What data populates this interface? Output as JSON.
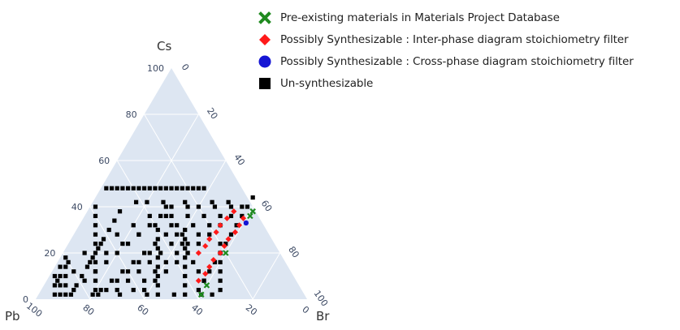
{
  "legend": {
    "items": [
      {
        "label": "Pre-existing materials in Materials Project Database",
        "marker": "x-cross",
        "color": "#1f8a1f"
      },
      {
        "label": "Possibly Synthesizable : Inter-phase diagram stoichiometry filter",
        "marker": "diamond",
        "color": "#ff1a1a"
      },
      {
        "label": "Possibly Synthesizable  : Cross-phase diagram stoichiometry filter",
        "marker": "circle",
        "color": "#1515d4"
      },
      {
        "label": "Un-synthesizable",
        "marker": "square",
        "color": "#000000"
      }
    ]
  },
  "colors": {
    "background": "#dde6f2",
    "grid": "#ffffff",
    "tick_text": "#3d4a64"
  },
  "chart_data": {
    "type": "scatter",
    "subtype": "ternary",
    "vertices": {
      "top": "Cs",
      "left": "Pb",
      "right": "Br"
    },
    "ticks": {
      "Cs": [
        "0",
        "20",
        "40",
        "60",
        "80",
        "100"
      ],
      "Br": [
        "0",
        "20",
        "40",
        "60",
        "80",
        "100"
      ],
      "Pb": [
        "100",
        "80",
        "60",
        "40",
        "20",
        "0"
      ]
    },
    "grid": true,
    "series": [
      {
        "name": "Un-synthesizable",
        "color": "#000000",
        "marker": "square",
        "points": [
          [
            48,
            2,
            50
          ],
          [
            48,
            4,
            48
          ],
          [
            48,
            6,
            46
          ],
          [
            48,
            8,
            44
          ],
          [
            48,
            10,
            42
          ],
          [
            48,
            12,
            40
          ],
          [
            48,
            14,
            38
          ],
          [
            48,
            16,
            36
          ],
          [
            48,
            18,
            34
          ],
          [
            48,
            20,
            32
          ],
          [
            48,
            22,
            30
          ],
          [
            48,
            24,
            28
          ],
          [
            48,
            26,
            26
          ],
          [
            48,
            28,
            24
          ],
          [
            48,
            30,
            22
          ],
          [
            48,
            32,
            20
          ],
          [
            48,
            34,
            18
          ],
          [
            48,
            36,
            16
          ],
          [
            48,
            38,
            14
          ],
          [
            40,
            2,
            58
          ],
          [
            36,
            4,
            60
          ],
          [
            32,
            6,
            62
          ],
          [
            28,
            8,
            64
          ],
          [
            24,
            10,
            66
          ],
          [
            20,
            12,
            68
          ],
          [
            16,
            14,
            70
          ],
          [
            12,
            16,
            72
          ],
          [
            8,
            18,
            74
          ],
          [
            4,
            20,
            76
          ],
          [
            38,
            12,
            50
          ],
          [
            34,
            12,
            54
          ],
          [
            30,
            12,
            58
          ],
          [
            26,
            12,
            62
          ],
          [
            22,
            12,
            66
          ],
          [
            18,
            12,
            70
          ],
          [
            14,
            12,
            74
          ],
          [
            10,
            12,
            78
          ],
          [
            6,
            12,
            82
          ],
          [
            2,
            12,
            86
          ],
          [
            40,
            28,
            32
          ],
          [
            36,
            24,
            40
          ],
          [
            32,
            20,
            48
          ],
          [
            28,
            16,
            56
          ],
          [
            24,
            12,
            64
          ],
          [
            20,
            8,
            72
          ],
          [
            16,
            4,
            80
          ],
          [
            40,
            30,
            30
          ],
          [
            36,
            28,
            36
          ],
          [
            32,
            26,
            42
          ],
          [
            28,
            24,
            48
          ],
          [
            24,
            22,
            54
          ],
          [
            20,
            20,
            60
          ],
          [
            16,
            18,
            66
          ],
          [
            12,
            16,
            72
          ],
          [
            8,
            14,
            78
          ],
          [
            4,
            12,
            84
          ],
          [
            40,
            36,
            24
          ],
          [
            36,
            32,
            32
          ],
          [
            32,
            28,
            40
          ],
          [
            28,
            24,
            48
          ],
          [
            24,
            20,
            56
          ],
          [
            20,
            16,
            64
          ],
          [
            16,
            12,
            72
          ],
          [
            12,
            8,
            80
          ],
          [
            8,
            4,
            88
          ],
          [
            40,
            40,
            20
          ],
          [
            36,
            38,
            26
          ],
          [
            32,
            36,
            32
          ],
          [
            28,
            34,
            38
          ],
          [
            24,
            32,
            44
          ],
          [
            20,
            30,
            50
          ],
          [
            16,
            28,
            56
          ],
          [
            12,
            26,
            62
          ],
          [
            8,
            24,
            68
          ],
          [
            4,
            22,
            74
          ],
          [
            40,
            46,
            14
          ],
          [
            36,
            44,
            20
          ],
          [
            32,
            42,
            26
          ],
          [
            28,
            40,
            32
          ],
          [
            24,
            38,
            38
          ],
          [
            20,
            36,
            44
          ],
          [
            16,
            34,
            50
          ],
          [
            12,
            32,
            56
          ],
          [
            8,
            30,
            62
          ],
          [
            4,
            28,
            68
          ],
          [
            40,
            52,
            8
          ],
          [
            36,
            50,
            14
          ],
          [
            32,
            48,
            20
          ],
          [
            28,
            46,
            26
          ],
          [
            24,
            44,
            32
          ],
          [
            20,
            42,
            38
          ],
          [
            16,
            40,
            44
          ],
          [
            12,
            38,
            50
          ],
          [
            8,
            36,
            56
          ],
          [
            4,
            34,
            62
          ],
          [
            40,
            56,
            4
          ],
          [
            36,
            54,
            10
          ],
          [
            32,
            52,
            16
          ],
          [
            28,
            50,
            22
          ],
          [
            24,
            48,
            28
          ],
          [
            20,
            46,
            34
          ],
          [
            16,
            44,
            40
          ],
          [
            12,
            42,
            46
          ],
          [
            8,
            40,
            52
          ],
          [
            4,
            38,
            58
          ],
          [
            30,
            30,
            40
          ],
          [
            26,
            32,
            42
          ],
          [
            22,
            34,
            44
          ],
          [
            18,
            36,
            46
          ],
          [
            14,
            38,
            48
          ],
          [
            10,
            40,
            50
          ],
          [
            6,
            42,
            52
          ],
          [
            2,
            44,
            54
          ],
          [
            36,
            30,
            34
          ],
          [
            32,
            34,
            34
          ],
          [
            28,
            38,
            34
          ],
          [
            24,
            42,
            34
          ],
          [
            20,
            46,
            34
          ],
          [
            16,
            50,
            34
          ],
          [
            12,
            54,
            34
          ],
          [
            8,
            58,
            34
          ],
          [
            30,
            40,
            30
          ],
          [
            26,
            42,
            32
          ],
          [
            22,
            44,
            34
          ],
          [
            18,
            46,
            36
          ],
          [
            14,
            48,
            38
          ],
          [
            10,
            50,
            40
          ],
          [
            6,
            52,
            42
          ],
          [
            2,
            54,
            44
          ],
          [
            20,
            32,
            48
          ],
          [
            16,
            30,
            54
          ],
          [
            12,
            28,
            60
          ],
          [
            8,
            26,
            66
          ],
          [
            4,
            24,
            72
          ],
          [
            2,
            22,
            76
          ],
          [
            24,
            56,
            20
          ],
          [
            20,
            58,
            22
          ],
          [
            16,
            60,
            24
          ],
          [
            12,
            62,
            26
          ],
          [
            8,
            64,
            28
          ],
          [
            4,
            66,
            30
          ],
          [
            10,
            2,
            88
          ],
          [
            6,
            4,
            90
          ],
          [
            2,
            6,
            92
          ],
          [
            14,
            2,
            84
          ],
          [
            10,
            4,
            86
          ],
          [
            6,
            6,
            88
          ],
          [
            2,
            8,
            90
          ],
          [
            18,
            2,
            80
          ],
          [
            14,
            4,
            82
          ],
          [
            10,
            6,
            84
          ],
          [
            6,
            8,
            86
          ],
          [
            2,
            10,
            88
          ],
          [
            2,
            20,
            78
          ],
          [
            2,
            30,
            68
          ],
          [
            2,
            40,
            58
          ],
          [
            2,
            50,
            48
          ],
          [
            2,
            60,
            38
          ],
          [
            2,
            64,
            34
          ],
          [
            42,
            16,
            42
          ],
          [
            42,
            20,
            38
          ],
          [
            42,
            26,
            32
          ],
          [
            42,
            34,
            24
          ],
          [
            42,
            44,
            14
          ],
          [
            42,
            50,
            8
          ],
          [
            44,
            58,
            -2
          ],
          [
            40,
            58,
            2
          ],
          [
            36,
            58,
            6
          ],
          [
            32,
            58,
            10
          ],
          [
            28,
            58,
            14
          ],
          [
            24,
            58,
            18
          ],
          [
            20,
            58,
            22
          ],
          [
            16,
            58,
            26
          ],
          [
            12,
            58,
            30
          ],
          [
            8,
            58,
            34
          ],
          [
            4,
            58,
            38
          ]
        ]
      },
      {
        "name": "Possibly Synthesizable : Inter-phase diagram stoichiometry filter",
        "color": "#ff1a1a",
        "marker": "diamond",
        "points": [
          [
            38,
            54,
            8
          ],
          [
            35,
            53,
            12
          ],
          [
            32,
            52,
            16
          ],
          [
            29,
            52,
            19
          ],
          [
            26,
            51,
            23
          ],
          [
            23,
            51,
            26
          ],
          [
            20,
            50,
            30
          ],
          [
            35,
            59,
            6
          ],
          [
            32,
            59,
            9
          ],
          [
            29,
            59,
            12
          ],
          [
            26,
            58,
            16
          ],
          [
            23,
            58,
            19
          ],
          [
            20,
            58,
            22
          ],
          [
            17,
            57,
            26
          ],
          [
            14,
            57,
            29
          ],
          [
            11,
            57,
            32
          ],
          [
            8,
            56,
            36
          ]
        ]
      },
      {
        "name": "Possibly Synthesizable  : Cross-phase diagram stoichiometry filter",
        "color": "#1515d4",
        "marker": "circle",
        "points": [
          [
            33,
            61,
            6
          ]
        ]
      },
      {
        "name": "Pre-existing materials in Materials Project Database",
        "color": "#1f8a1f",
        "marker": "x-cross",
        "points": [
          [
            38,
            61,
            1
          ],
          [
            36,
            61,
            3
          ],
          [
            20,
            60,
            20
          ],
          [
            6,
            60,
            34
          ],
          [
            2,
            60,
            38
          ]
        ]
      }
    ]
  }
}
